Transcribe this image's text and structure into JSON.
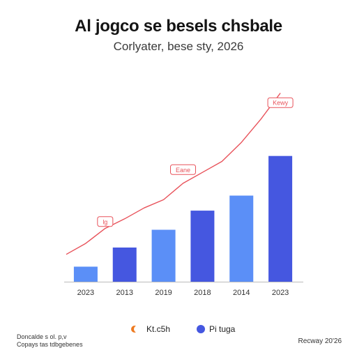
{
  "title": "Al jogco se besels chsbale",
  "subtitle": "Corlyater, bese sty, 2026",
  "colors": {
    "bar_light": "#5b8ff7",
    "bar_dark": "#4557e0",
    "line": "#e8525a",
    "axis": "#bbbbbb",
    "legend_line": "#ee7a20"
  },
  "chart_data": {
    "type": "bar",
    "categories": [
      "2023",
      "2013",
      "2019",
      "2018",
      "2014",
      "2023"
    ],
    "series": [
      {
        "name": "Pi tuga",
        "values": [
          22,
          50,
          76,
          104,
          126,
          184
        ]
      }
    ],
    "line_series": {
      "name": "Kt.c5h",
      "x": [
        0.0,
        0.5,
        1.0,
        1.5,
        2.0,
        2.5,
        3.0,
        3.5,
        4.0,
        4.5,
        5.0,
        5.5
      ],
      "values": [
        40,
        56,
        78,
        92,
        108,
        120,
        144,
        160,
        176,
        204,
        238,
        276
      ]
    },
    "annotations": [
      {
        "text": "lg",
        "at_x": 1.0,
        "value": 88
      },
      {
        "text": "Eane",
        "at_x": 3.0,
        "value": 164
      },
      {
        "text": "Kewy",
        "at_x": 5.5,
        "value": 262
      }
    ],
    "ylim": [
      0,
      300
    ],
    "xlabel": "",
    "ylabel": "",
    "grid": false,
    "legend_position": "bottom"
  },
  "legend": {
    "line_label": "Kt.c5h",
    "bar_label": "Pi tuga"
  },
  "footer": {
    "left_line1": "Doncalde s ol. p,v",
    "left_line2": "Copays tas tdbgebenes",
    "right": "Recway 20'26"
  }
}
